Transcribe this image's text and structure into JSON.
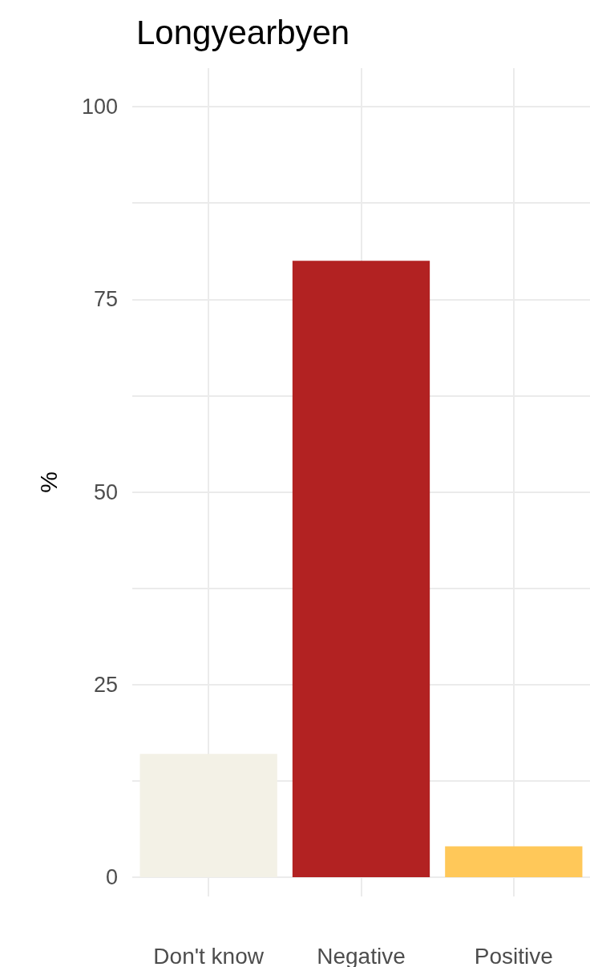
{
  "chart_data": {
    "type": "bar",
    "title": "Longyearbyen",
    "ylabel": "%",
    "categories": [
      "Don't know",
      "Negative",
      "Positive"
    ],
    "values": [
      16,
      80,
      4
    ],
    "colors": [
      "#f3f1e6",
      "#b22222",
      "#ffc859"
    ],
    "ylim": [
      -2.5,
      105
    ],
    "yticks": [
      0,
      {
        "value": 12.5,
        "label": null
      },
      25,
      {
        "value": 37.5,
        "label": null
      },
      50,
      {
        "value": 62.5,
        "label": null
      },
      75,
      {
        "value": 87.5,
        "label": null
      },
      100
    ],
    "grid": true
  }
}
